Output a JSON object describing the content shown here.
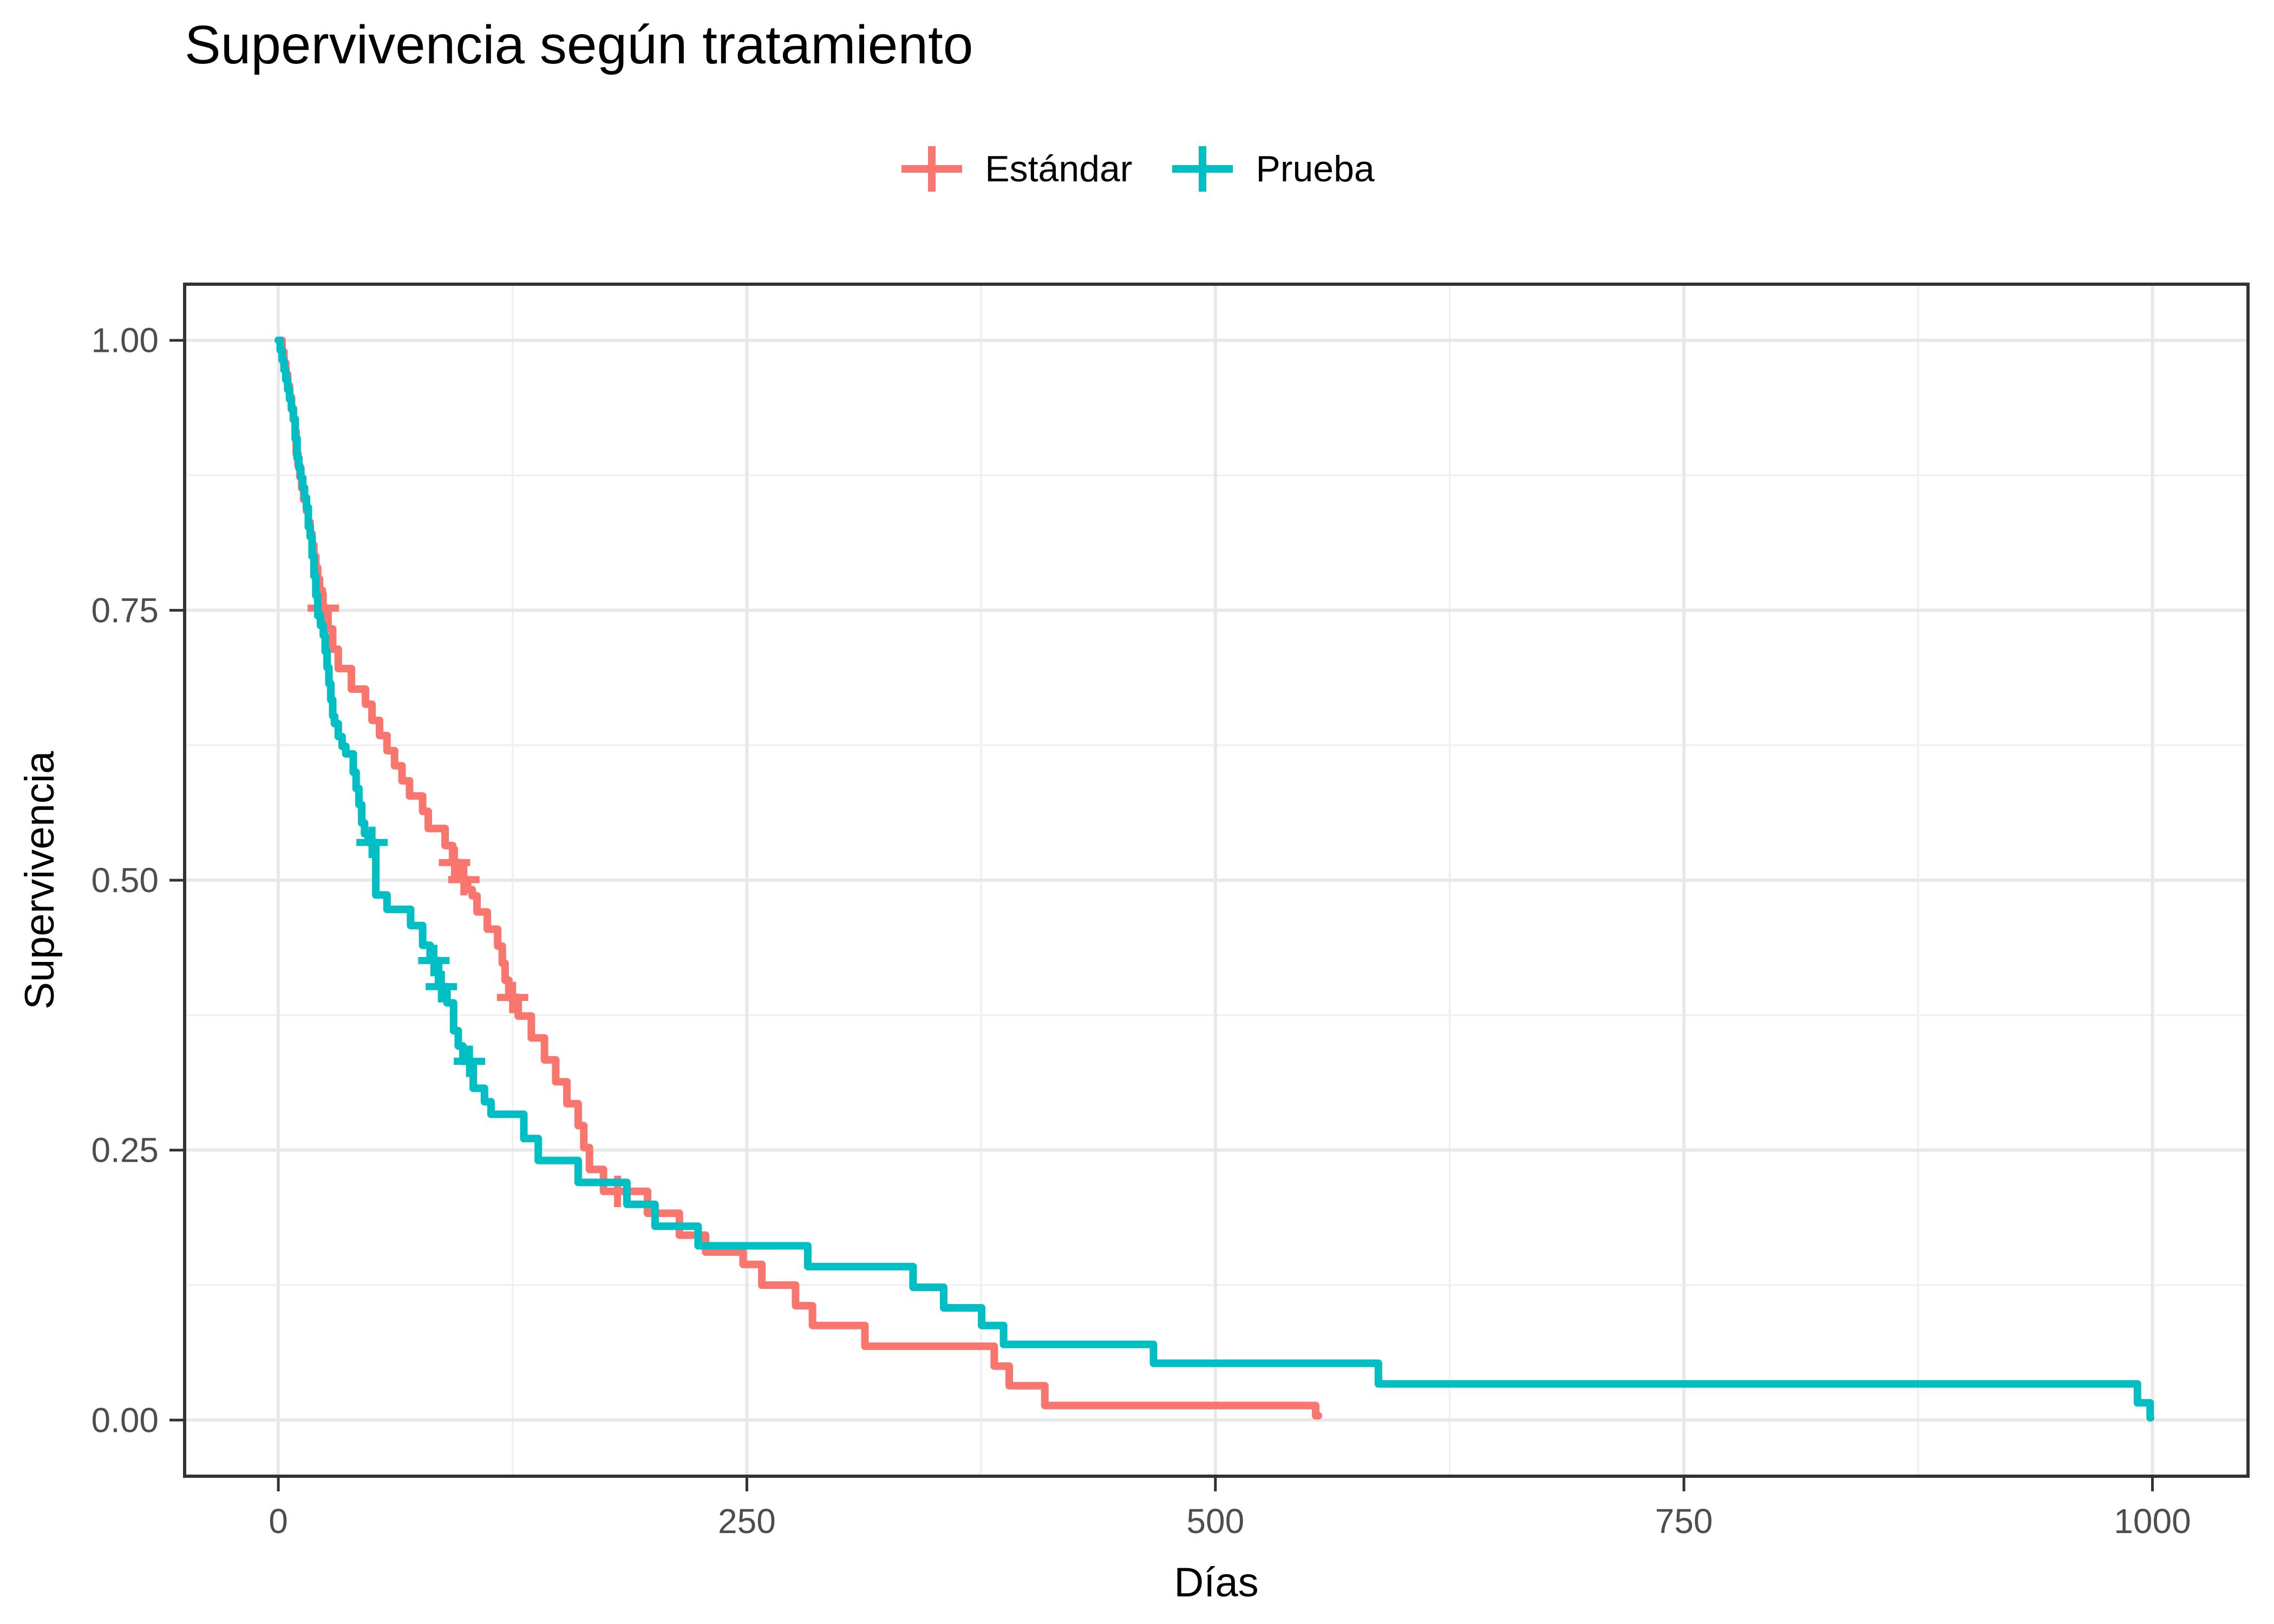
{
  "title": "Supervivencia según tratamiento",
  "legend": {
    "items": [
      {
        "label": "Estándar",
        "color": "#F8766D"
      },
      {
        "label": "Prueba",
        "color": "#00BFC4"
      }
    ]
  },
  "x_axis": {
    "label": "Días",
    "tick_labels": [
      "0",
      "250",
      "500",
      "750",
      "1000"
    ],
    "tick_values": [
      0,
      250,
      500,
      750,
      1000
    ],
    "minor_breaks": [
      125,
      375,
      625,
      875
    ],
    "range": [
      -50,
      1051
    ]
  },
  "y_axis": {
    "label": "Supervivencia",
    "tick_labels": [
      "0.00",
      "0.25",
      "0.50",
      "0.75",
      "1.00"
    ],
    "tick_values": [
      0,
      0.25,
      0.5,
      0.75,
      1
    ],
    "minor_breaks": [
      0.125,
      0.375,
      0.625,
      0.875
    ],
    "range": [
      -0.052,
      1.052
    ]
  },
  "chart_data": {
    "type": "line",
    "subtype": "kaplan_meier_step",
    "title": "Supervivencia según tratamiento",
    "xlabel": "Días",
    "ylabel": "Supervivencia",
    "xlim": [
      0,
      1000
    ],
    "ylim": [
      0,
      1
    ],
    "grid": "on",
    "legend_position": "top",
    "series": [
      {
        "name": "Estándar",
        "color": "#F8766D",
        "start": [
          0,
          1.0
        ],
        "steps": [
          [
            2,
            0.9895
          ],
          [
            3,
            0.979
          ],
          [
            4,
            0.9685
          ],
          [
            5,
            0.958
          ],
          [
            6,
            0.9475
          ],
          [
            7,
            0.937
          ],
          [
            8,
            0.9265
          ],
          [
            9,
            0.916
          ],
          [
            9.5,
            0.895
          ],
          [
            10.5,
            0.884
          ],
          [
            11.5,
            0.8735
          ],
          [
            12.5,
            0.863
          ],
          [
            13.5,
            0.8525
          ],
          [
            15,
            0.842
          ],
          [
            16,
            0.8315
          ],
          [
            17,
            0.821
          ],
          [
            18,
            0.8105
          ],
          [
            19,
            0.8
          ],
          [
            20,
            0.7895
          ],
          [
            21,
            0.779
          ],
          [
            22,
            0.7685
          ],
          [
            23.5,
            0.752
          ],
          [
            26.5,
            0.7328
          ],
          [
            29,
            0.7139
          ],
          [
            32,
            0.696
          ],
          [
            39,
            0.677
          ],
          [
            46.5,
            0.663
          ],
          [
            50,
            0.648
          ],
          [
            54,
            0.634
          ],
          [
            58,
            0.62
          ],
          [
            62,
            0.606
          ],
          [
            66,
            0.592
          ],
          [
            70,
            0.578
          ],
          [
            77,
            0.5637
          ],
          [
            80,
            0.5479
          ],
          [
            89,
            0.5321
          ],
          [
            93,
            0.5163
          ],
          [
            97.5,
            0.5005
          ],
          [
            101,
            0.4913
          ],
          [
            103.5,
            0.4855
          ],
          [
            106,
            0.4706
          ],
          [
            111.5,
            0.4547
          ],
          [
            117,
            0.439
          ],
          [
            119.5,
            0.4231
          ],
          [
            121,
            0.4073
          ],
          [
            123,
            0.3914
          ],
          [
            128,
            0.3742
          ],
          [
            135,
            0.3539
          ],
          [
            142,
            0.3336
          ],
          [
            148,
            0.3133
          ],
          [
            154,
            0.293
          ],
          [
            160,
            0.2727
          ],
          [
            163,
            0.2524
          ],
          [
            166,
            0.2321
          ],
          [
            173.5,
            0.2118
          ],
          [
            197,
            0.1915
          ],
          [
            214,
            0.1712
          ],
          [
            228,
            0.1556
          ],
          [
            248,
            0.1442
          ],
          [
            258,
            0.125
          ],
          [
            276,
            0.1059
          ],
          [
            285,
            0.0876
          ],
          [
            313,
            0.0684
          ],
          [
            382,
            0.05
          ],
          [
            390,
            0.0318
          ],
          [
            409,
            0.0135
          ],
          [
            553.5,
            0.004
          ]
        ],
        "end_time": 555,
        "censors": [
          [
            24,
            0.752
          ],
          [
            94,
            0.5163
          ],
          [
            99,
            0.5005
          ],
          [
            125,
            0.3914
          ],
          [
            181,
            0.2118
          ]
        ]
      },
      {
        "name": "Prueba",
        "color": "#00BFC4",
        "start": [
          0,
          1.0
        ],
        "steps": [
          [
            1,
            0.9909
          ],
          [
            2,
            0.9818
          ],
          [
            3,
            0.9727
          ],
          [
            4,
            0.9636
          ],
          [
            5,
            0.9545
          ],
          [
            6,
            0.9454
          ],
          [
            7,
            0.9363
          ],
          [
            8,
            0.9272
          ],
          [
            9,
            0.909
          ],
          [
            10,
            0.8908
          ],
          [
            11,
            0.8817
          ],
          [
            12,
            0.8726
          ],
          [
            13,
            0.8635
          ],
          [
            14,
            0.8544
          ],
          [
            15,
            0.8453
          ],
          [
            16,
            0.8272
          ],
          [
            17,
            0.8181
          ],
          [
            18,
            0.8
          ],
          [
            19,
            0.7818
          ],
          [
            20,
            0.7637
          ],
          [
            21,
            0.745
          ],
          [
            22.5,
            0.7359
          ],
          [
            24,
            0.7268
          ],
          [
            25,
            0.712
          ],
          [
            26,
            0.697
          ],
          [
            27,
            0.682
          ],
          [
            28,
            0.667
          ],
          [
            29,
            0.652
          ],
          [
            30,
            0.645
          ],
          [
            32,
            0.633
          ],
          [
            34,
            0.624
          ],
          [
            36,
            0.617
          ],
          [
            40,
            0.6
          ],
          [
            41.5,
            0.585
          ],
          [
            43,
            0.57
          ],
          [
            44.5,
            0.553
          ],
          [
            46,
            0.543
          ],
          [
            48,
            0.535
          ],
          [
            52,
            0.4863
          ],
          [
            58,
            0.473
          ],
          [
            70.6,
            0.458
          ],
          [
            77,
            0.4397
          ],
          [
            81,
            0.4256
          ],
          [
            85.5,
            0.4014
          ],
          [
            90,
            0.3864
          ],
          [
            93.5,
            0.3606
          ],
          [
            96,
            0.3465
          ],
          [
            98.5,
            0.3323
          ],
          [
            104,
            0.3073
          ],
          [
            110,
            0.2948
          ],
          [
            113.5,
            0.2832
          ],
          [
            131,
            0.2607
          ],
          [
            138.7,
            0.2404
          ],
          [
            160,
            0.2201
          ],
          [
            186,
            0.1998
          ],
          [
            201,
            0.1795
          ],
          [
            224,
            0.1614
          ],
          [
            282.5,
            0.1422
          ],
          [
            338.7,
            0.123
          ],
          [
            355,
            0.1039
          ],
          [
            375.3,
            0.0876
          ],
          [
            387,
            0.0701
          ],
          [
            467,
            0.0526
          ],
          [
            587,
            0.0335
          ],
          [
            992,
            0.016
          ],
          [
            998.8,
            0.002
          ]
        ],
        "end_time": 999,
        "censors": [
          [
            50,
            0.535
          ],
          [
            83,
            0.4256
          ],
          [
            87,
            0.4014
          ],
          [
            102,
            0.3323
          ]
        ]
      }
    ]
  },
  "style": {
    "panel_background": "#FFFFFF",
    "grid_major_color": "#E8E8E8",
    "grid_minor_color": "#F0F0F0",
    "panel_border_color": "#333333",
    "tick_color": "#333333",
    "tick_label_color": "#4D4D4D",
    "text_color": "#000000"
  }
}
